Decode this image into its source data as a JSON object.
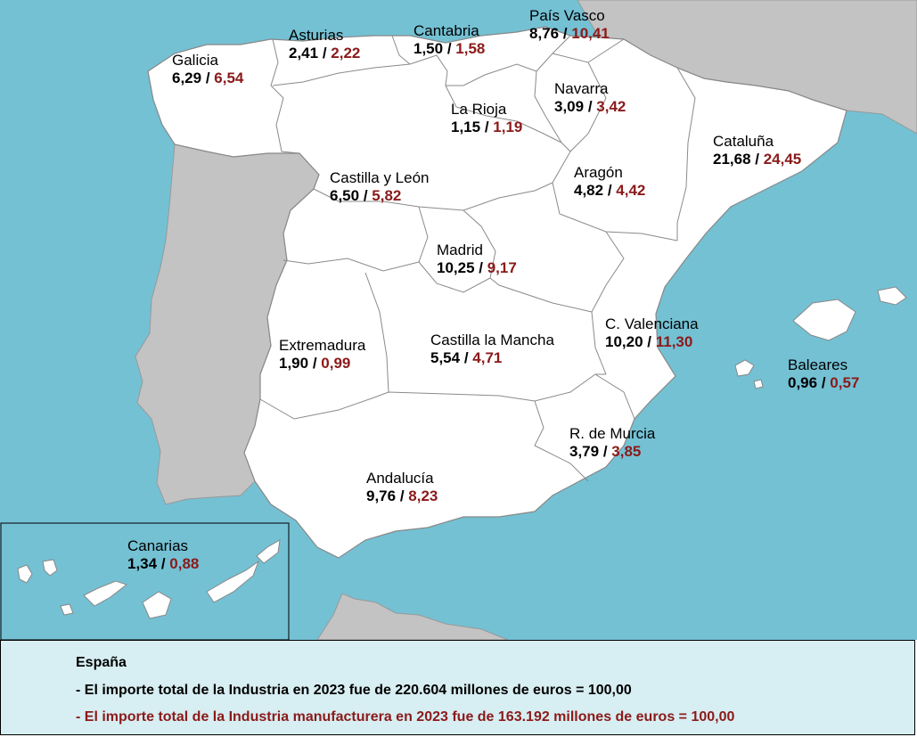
{
  "regions": [
    {
      "id": "galicia",
      "name": "Galicia",
      "industria": "6,29",
      "manufacturera": "6,54"
    },
    {
      "id": "asturias",
      "name": "Asturias",
      "industria": "2,41",
      "manufacturera": "2,22"
    },
    {
      "id": "cantabria",
      "name": "Cantabria",
      "industria": "1,50",
      "manufacturera": "1,58"
    },
    {
      "id": "pais-vasco",
      "name": "País Vasco",
      "industria": "8,76",
      "manufacturera": "10,41"
    },
    {
      "id": "navarra",
      "name": "Navarra",
      "industria": "3,09",
      "manufacturera": "3,42"
    },
    {
      "id": "la-rioja",
      "name": "La Rioja",
      "industria": "1,15",
      "manufacturera": "1,19"
    },
    {
      "id": "cataluna",
      "name": "Cataluña",
      "industria": "21,68",
      "manufacturera": "24,45"
    },
    {
      "id": "castilla-leon",
      "name": "Castilla y León",
      "industria": "6,50",
      "manufacturera": "5,82"
    },
    {
      "id": "aragon",
      "name": "Aragón",
      "industria": "4,82",
      "manufacturera": "4,42"
    },
    {
      "id": "madrid",
      "name": "Madrid",
      "industria": "10,25",
      "manufacturera": "9,17"
    },
    {
      "id": "c-valenciana",
      "name": "C. Valenciana",
      "industria": "10,20",
      "manufacturera": "11,30"
    },
    {
      "id": "extremadura",
      "name": "Extremadura",
      "industria": "1,90",
      "manufacturera": "0,99"
    },
    {
      "id": "castilla-la-mancha",
      "name": "Castilla la Mancha",
      "industria": "5,54",
      "manufacturera": "4,71"
    },
    {
      "id": "baleares",
      "name": "Baleares",
      "industria": "0,96",
      "manufacturera": "0,57"
    },
    {
      "id": "murcia",
      "name": "R. de Murcia",
      "industria": "3,79",
      "manufacturera": "3,85"
    },
    {
      "id": "andalucia",
      "name": "Andalucía",
      "industria": "9,76",
      "manufacturera": "8,23"
    },
    {
      "id": "canarias",
      "name": "Canarias",
      "industria": "1,34",
      "manufacturera": "0,88"
    }
  ],
  "separator": " / ",
  "legend": {
    "title": "España",
    "line_industria": "- El importe total de la Industria en 2023 fue de 220.604 millones de euros = 100,00",
    "line_manufacturera": "- El importe total de la Industria manufacturera en 2023 fue de 163.192 millones de euros = 100,00"
  },
  "colors": {
    "sea": "#74c1d4",
    "land_spain": "#ffffff",
    "land_other": "#c3c3c3",
    "border": "#888888",
    "value_industria": "#000000",
    "value_manufacturera": "#8b1a1a",
    "legend_bg": "#d7eef2"
  }
}
